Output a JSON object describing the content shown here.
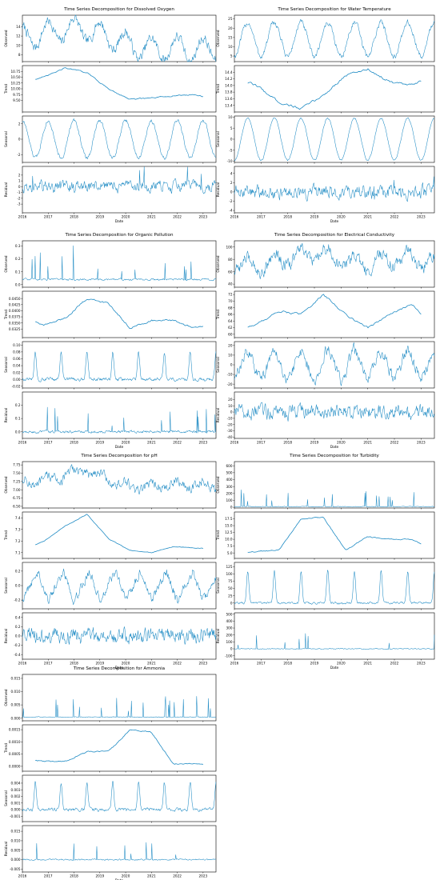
{
  "style": {
    "line_color": "#1f8bc4",
    "axis_color": "#000000",
    "background": "#ffffff"
  },
  "x_axis": {
    "label": "Date",
    "range": [
      2016.0,
      2023.5
    ],
    "ticks": [
      "2016",
      "2017",
      "2018",
      "2019",
      "2020",
      "2021",
      "2022",
      "2023"
    ]
  },
  "component_labels": [
    "Observed",
    "Trend",
    "Seasonal",
    "Residual"
  ],
  "chart_data": [
    {
      "type": "line",
      "panel": "dissolved-oxygen",
      "title": "Time Series Decomposition for Dissolved Oxygen",
      "xlabel": "Date",
      "components": [
        {
          "name": "Observed",
          "ylim": [
            6.5,
            16.5
          ],
          "yticks": [
            "8",
            "10",
            "12",
            "14"
          ],
          "base": 11.0,
          "trend_shape": [
            11.5,
            12.5,
            13.5,
            13.3,
            12.0,
            10.0,
            9.0,
            9.5,
            9.0,
            9.2
          ],
          "seasonal_amp": 2.5,
          "seasonal_shape": "sine",
          "noise": 0.9,
          "spike_prob": 0.0,
          "spike_size": 0.0
        },
        {
          "name": "Trend",
          "ylim": [
            9.0,
            11.0
          ],
          "yticks": [
            "9.50",
            "9.75",
            "10.00",
            "10.25",
            "10.50",
            "10.75"
          ],
          "base": 9.8,
          "trend_shape": [
            10.3,
            10.5,
            10.9,
            10.7,
            10.0,
            9.55,
            9.6,
            9.7,
            9.75,
            9.55
          ],
          "seasonal_amp": 0.0,
          "seasonal_shape": "sine",
          "noise": 0.02,
          "spike_prob": 0.0,
          "spike_size": 0.0
        },
        {
          "name": "Seasonal",
          "ylim": [
            -3.0,
            3.0
          ],
          "yticks": [
            "-2",
            "0",
            "2"
          ],
          "base": 0.0,
          "trend_shape": [
            0,
            0
          ],
          "seasonal_amp": 2.4,
          "seasonal_shape": "sine",
          "noise": 0.2,
          "spike_prob": 0.0,
          "spike_size": 0.0
        },
        {
          "name": "Residual",
          "ylim": [
            -4.5,
            3.5
          ],
          "yticks": [
            "-3",
            "-2",
            "-1",
            "0",
            "1",
            "2"
          ],
          "base": 0.0,
          "trend_shape": [
            0,
            0
          ],
          "seasonal_amp": 0.0,
          "seasonal_shape": "sine",
          "noise": 0.8,
          "spike_prob": 0.01,
          "spike_size": 2.5
        }
      ]
    },
    {
      "type": "line",
      "panel": "water-temperature",
      "title": "Time Series Decomposition for Water Temperature",
      "xlabel": "Date",
      "components": [
        {
          "name": "Observed",
          "ylim": [
            2.0,
            27.0
          ],
          "yticks": [
            "5",
            "10",
            "15",
            "20",
            "25"
          ],
          "base": 14.0,
          "trend_shape": [
            0,
            0
          ],
          "seasonal_amp": 9.0,
          "seasonal_shape": "neg-sine",
          "noise": 1.3,
          "spike_prob": 0.0,
          "spike_size": 0.0
        },
        {
          "name": "Trend",
          "ylim": [
            13.2,
            14.6
          ],
          "yticks": [
            "13.4",
            "13.6",
            "13.8",
            "14.0",
            "14.2",
            "14.4"
          ],
          "base": 14.0,
          "trend_shape": [
            14.2,
            14.0,
            13.5,
            13.3,
            13.7,
            14.3,
            14.5,
            14.1,
            14.0,
            14.3
          ],
          "seasonal_amp": 0.0,
          "seasonal_shape": "sine",
          "noise": 0.03,
          "spike_prob": 0.0,
          "spike_size": 0.0
        },
        {
          "name": "Seasonal",
          "ylim": [
            -10.5,
            10.5
          ],
          "yticks": [
            "-10",
            "-5",
            "0",
            "5",
            "10"
          ],
          "base": 0.0,
          "trend_shape": [
            0,
            0
          ],
          "seasonal_amp": 9.5,
          "seasonal_shape": "neg-sine",
          "noise": 0.3,
          "spike_prob": 0.0,
          "spike_size": 0.0
        },
        {
          "name": "Residual",
          "ylim": [
            -4.5,
            5.5
          ],
          "yticks": [
            "-4",
            "-2",
            "0",
            "2",
            "4"
          ],
          "base": 0.0,
          "trend_shape": [
            0,
            0
          ],
          "seasonal_amp": 0.0,
          "seasonal_shape": "sine",
          "noise": 1.1,
          "spike_prob": 0.01,
          "spike_size": 2.5
        }
      ]
    },
    {
      "type": "line",
      "panel": "organic-pollution",
      "title": "Time Series Decomposition for Organic Pollution",
      "xlabel": "Date",
      "components": [
        {
          "name": "Observed",
          "ylim": [
            -0.02,
            0.34
          ],
          "yticks": [
            "0.0",
            "0.1",
            "0.2",
            "0.3"
          ],
          "base": 0.04,
          "trend_shape": [
            0,
            0
          ],
          "seasonal_amp": 0.0,
          "seasonal_shape": "sine",
          "noise": 0.006,
          "spike_prob": 0.04,
          "spike_size": 0.2
        },
        {
          "name": "Trend",
          "ylim": [
            0.029,
            0.048
          ],
          "yticks": [
            "0.0325",
            "0.0350",
            "0.0375",
            "0.0400",
            "0.0425",
            "0.0450"
          ],
          "base": 0.036,
          "trend_shape": [
            0.038,
            0.034,
            0.037,
            0.045,
            0.043,
            0.033,
            0.036,
            0.036,
            0.033,
            0.034
          ],
          "seasonal_amp": 0.0,
          "seasonal_shape": "sine",
          "noise": 0.0003,
          "spike_prob": 0.0,
          "spike_size": 0.0
        },
        {
          "name": "Seasonal",
          "ylim": [
            -0.025,
            0.11
          ],
          "yticks": [
            "-0.02",
            "0.00",
            "0.02",
            "0.04",
            "0.06",
            "0.08",
            "0.10"
          ],
          "base": 0.0,
          "trend_shape": [
            0,
            0
          ],
          "seasonal_amp": 0.08,
          "seasonal_shape": "spiky",
          "noise": 0.004,
          "spike_prob": 0.0,
          "spike_size": 0.0
        },
        {
          "name": "Residual",
          "ylim": [
            -0.05,
            0.3
          ],
          "yticks": [
            "0.0",
            "0.1",
            "0.2"
          ],
          "base": 0.0,
          "trend_shape": [
            0,
            0
          ],
          "seasonal_amp": 0.0,
          "seasonal_shape": "sine",
          "noise": 0.008,
          "spike_prob": 0.03,
          "spike_size": 0.15
        }
      ]
    },
    {
      "type": "line",
      "panel": "electrical-conductivity",
      "title": "Time Series Decomposition for Electrical Conductivity",
      "xlabel": "Date",
      "components": [
        {
          "name": "Observed",
          "ylim": [
            35,
            110
          ],
          "yticks": [
            "40",
            "60",
            "80",
            "100"
          ],
          "base": 75,
          "trend_shape": [
            72,
            70,
            78,
            85,
            88,
            76,
            72,
            80,
            82,
            74
          ],
          "seasonal_amp": 12,
          "seasonal_shape": "neg-sine",
          "noise": 8,
          "spike_prob": 0.0,
          "spike_size": 0.0
        },
        {
          "name": "Trend",
          "ylim": [
            59,
            73
          ],
          "yticks": [
            "60",
            "62",
            "64",
            "66",
            "68",
            "70",
            "72"
          ],
          "base": 64,
          "trend_shape": [
            61,
            63,
            67,
            66,
            72,
            66,
            62,
            66,
            69,
            62
          ],
          "seasonal_amp": 0.0,
          "seasonal_shape": "sine",
          "noise": 0.25,
          "spike_prob": 0.0,
          "spike_size": 0.0
        },
        {
          "name": "Seasonal",
          "ylim": [
            -24,
            24
          ],
          "yticks": [
            "-20",
            "-10",
            "0",
            "10",
            "20"
          ],
          "base": 0.0,
          "trend_shape": [
            0,
            0
          ],
          "seasonal_amp": 14,
          "seasonal_shape": "neg-sine",
          "noise": 5,
          "spike_prob": 0.0,
          "spike_size": 0.0
        },
        {
          "name": "Residual",
          "ylim": [
            -42,
            32
          ],
          "yticks": [
            "-40",
            "-30",
            "-20",
            "-10",
            "0",
            "10",
            "20"
          ],
          "base": 0.0,
          "trend_shape": [
            0,
            0
          ],
          "seasonal_amp": 0.0,
          "seasonal_shape": "sine",
          "noise": 9,
          "spike_prob": 0.0,
          "spike_size": 0.0
        }
      ]
    },
    {
      "type": "line",
      "panel": "ph",
      "title": "Time Series Decomposition for pH",
      "xlabel": "Date",
      "components": [
        {
          "name": "Observed",
          "ylim": [
            6.45,
            7.85
          ],
          "yticks": [
            "6.50",
            "6.75",
            "7.00",
            "7.25",
            "7.50",
            "7.75"
          ],
          "base": 7.15,
          "trend_shape": [
            7.2,
            7.25,
            7.45,
            7.6,
            7.3,
            7.05,
            7.1,
            7.15,
            7.15,
            7.1
          ],
          "seasonal_amp": 0.12,
          "seasonal_shape": "sine",
          "noise": 0.12,
          "spike_prob": 0.0,
          "spike_size": 0.0
        },
        {
          "name": "Trend",
          "ylim": [
            7.05,
            7.45
          ],
          "yticks": [
            "7.1",
            "7.2",
            "7.3",
            "7.4"
          ],
          "base": 7.15,
          "trend_shape": [
            7.12,
            7.2,
            7.33,
            7.43,
            7.22,
            7.12,
            7.1,
            7.15,
            7.14,
            7.13
          ],
          "seasonal_amp": 0.0,
          "seasonal_shape": "sine",
          "noise": 0.002,
          "spike_prob": 0.0,
          "spike_size": 0.0
        },
        {
          "name": "Seasonal",
          "ylim": [
            -0.32,
            0.32
          ],
          "yticks": [
            "-0.2",
            "0.0",
            "0.2"
          ],
          "base": 0.0,
          "trend_shape": [
            0,
            0
          ],
          "seasonal_amp": 0.2,
          "seasonal_shape": "saw",
          "noise": 0.05,
          "spike_prob": 0.0,
          "spike_size": 0.0
        },
        {
          "name": "Residual",
          "ylim": [
            -0.5,
            0.5
          ],
          "yticks": [
            "-0.4",
            "-0.2",
            "0.0",
            "0.2",
            "0.4"
          ],
          "base": 0.0,
          "trend_shape": [
            0,
            0
          ],
          "seasonal_amp": 0.0,
          "seasonal_shape": "sine",
          "noise": 0.13,
          "spike_prob": 0.0,
          "spike_size": 0.0
        }
      ]
    },
    {
      "type": "line",
      "panel": "turbidity",
      "title": "Time Series Decomposition for Turbidity",
      "xlabel": "Date",
      "components": [
        {
          "name": "Observed",
          "ylim": [
            -10,
            660
          ],
          "yticks": [
            "0",
            "100",
            "200",
            "300",
            "400",
            "500",
            "600"
          ],
          "base": 10,
          "trend_shape": [
            0,
            0
          ],
          "seasonal_amp": 0.0,
          "seasonal_shape": "sine",
          "noise": 4,
          "spike_prob": 0.03,
          "spike_size": 200
        },
        {
          "name": "Trend",
          "ylim": [
            3,
            20
          ],
          "yticks": [
            "5.0",
            "7.5",
            "10.0",
            "12.5",
            "15.0",
            "17.5"
          ],
          "base": 6,
          "trend_shape": [
            5,
            5.5,
            6,
            17.5,
            18,
            6,
            11,
            10,
            10,
            5.5
          ],
          "seasonal_amp": 0.0,
          "seasonal_shape": "sine",
          "noise": 0.15,
          "spike_prob": 0.0,
          "spike_size": 0.0
        },
        {
          "name": "Seasonal",
          "ylim": [
            -20,
            140
          ],
          "yticks": [
            "0",
            "25",
            "50",
            "75",
            "100",
            "125"
          ],
          "base": 0.0,
          "trend_shape": [
            0,
            0
          ],
          "seasonal_amp": 110,
          "seasonal_shape": "spiky",
          "noise": 3,
          "spike_prob": 0.0,
          "spike_size": 0.0
        },
        {
          "name": "Residual",
          "ylim": [
            -150,
            520
          ],
          "yticks": [
            "-100",
            "0",
            "100",
            "200",
            "300",
            "400",
            "500"
          ],
          "base": 0.0,
          "trend_shape": [
            0,
            0
          ],
          "seasonal_amp": 0.0,
          "seasonal_shape": "sine",
          "noise": 5,
          "spike_prob": 0.02,
          "spike_size": 180
        }
      ]
    },
    {
      "type": "line",
      "panel": "ammonia",
      "title": "Time Series Decomposition for Ammonia",
      "xlabel": "Date",
      "components": [
        {
          "name": "Observed",
          "ylim": [
            -0.001,
            0.0165
          ],
          "yticks": [
            "0.000",
            "0.005",
            "0.010",
            "0.015"
          ],
          "base": 0.0004,
          "trend_shape": [
            0,
            0
          ],
          "seasonal_amp": 0.0,
          "seasonal_shape": "sine",
          "noise": 0.0001,
          "spike_prob": 0.03,
          "spike_size": 0.006
        },
        {
          "name": "Trend",
          "ylim": [
            -0.0002,
            0.0017
          ],
          "yticks": [
            "0.0000",
            "0.0005",
            "0.0010",
            "0.0015"
          ],
          "base": 0.0003,
          "trend_shape": [
            0.0003,
            0.0002,
            0.0002,
            0.0006,
            0.0006,
            0.0015,
            0.0014,
            0.0001,
            0.0001,
            0.0001
          ],
          "seasonal_amp": 0.0,
          "seasonal_shape": "sine",
          "noise": 2e-05,
          "spike_prob": 0.0,
          "spike_size": 0.0
        },
        {
          "name": "Seasonal",
          "ylim": [
            -0.0018,
            0.0052
          ],
          "yticks": [
            "-0.001",
            "0.000",
            "0.001",
            "0.002",
            "0.003",
            "0.004"
          ],
          "base": 0.0,
          "trend_shape": [
            0,
            0
          ],
          "seasonal_amp": 0.0042,
          "seasonal_shape": "spiky",
          "noise": 0.0002,
          "spike_prob": 0.0,
          "spike_size": 0.0
        },
        {
          "name": "Residual",
          "ylim": [
            -0.0065,
            0.018
          ],
          "yticks": [
            "-0.005",
            "0.000",
            "0.005",
            "0.010",
            "0.015"
          ],
          "base": 0.0,
          "trend_shape": [
            0,
            0
          ],
          "seasonal_amp": 0.0,
          "seasonal_shape": "sine",
          "noise": 0.0003,
          "spike_prob": 0.025,
          "spike_size": 0.007
        }
      ]
    }
  ]
}
